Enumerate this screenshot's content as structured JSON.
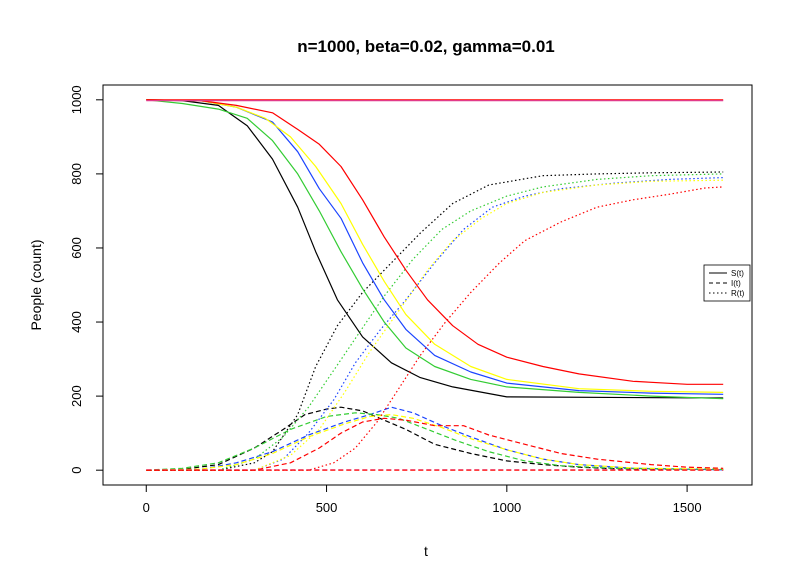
{
  "chart_data": {
    "type": "line",
    "title": "n=1000, beta=0.02, gamma=0.01",
    "xlabel": "t",
    "ylabel": "People (count)",
    "xlim": [
      -120,
      1680
    ],
    "ylim": [
      -40,
      1040
    ],
    "x_ticks": [
      0,
      500,
      1000,
      1500
    ],
    "x_tick_labels": [
      "0",
      "500",
      "1000",
      "1500"
    ],
    "y_ticks": [
      0,
      200,
      400,
      600,
      800,
      1000
    ],
    "y_tick_labels": [
      "0",
      "200",
      "400",
      "600",
      "800",
      "1000"
    ],
    "grid": false,
    "legend": {
      "position": "right",
      "entries": [
        {
          "label": "S(t)",
          "dash": "solid"
        },
        {
          "label": "I(t)",
          "dash": "dashed"
        },
        {
          "label": "R(t)",
          "dash": "dotted"
        }
      ]
    },
    "series": [
      {
        "color": "#000000",
        "dash": "solid",
        "x": [
          0,
          100,
          200,
          280,
          350,
          420,
          470,
          530,
          600,
          680,
          760,
          850,
          1000,
          1600
        ],
        "y": [
          1000,
          998,
          985,
          930,
          840,
          710,
          590,
          460,
          360,
          290,
          250,
          225,
          198,
          195
        ]
      },
      {
        "color": "#000000",
        "dash": "dashed",
        "x": [
          0,
          100,
          200,
          300,
          380,
          440,
          500,
          540,
          600,
          660,
          720,
          800,
          900,
          1000,
          1100,
          1200,
          1300,
          1450,
          1600
        ],
        "y": [
          0,
          2,
          15,
          60,
          110,
          150,
          165,
          170,
          160,
          135,
          110,
          70,
          45,
          25,
          15,
          8,
          4,
          2,
          1
        ]
      },
      {
        "color": "#000000",
        "dash": "dotted",
        "x": [
          0,
          200,
          300,
          350,
          420,
          470,
          530,
          600,
          680,
          760,
          850,
          950,
          1100,
          1250,
          1400,
          1600
        ],
        "y": [
          0,
          0,
          20,
          50,
          150,
          280,
          390,
          480,
          560,
          640,
          720,
          770,
          795,
          800,
          803,
          805
        ]
      },
      {
        "color": "#1b44ff",
        "dash": "solid",
        "x": [
          0,
          150,
          250,
          350,
          420,
          480,
          540,
          600,
          660,
          720,
          800,
          900,
          1000,
          1200,
          1400,
          1600
        ],
        "y": [
          1000,
          998,
          980,
          940,
          860,
          760,
          680,
          560,
          460,
          380,
          310,
          265,
          235,
          215,
          208,
          205
        ]
      },
      {
        "color": "#1b44ff",
        "dash": "dashed",
        "x": [
          0,
          150,
          250,
          350,
          450,
          550,
          620,
          680,
          740,
          820,
          900,
          1000,
          1100,
          1200,
          1350,
          1600
        ],
        "y": [
          0,
          2,
          20,
          50,
          95,
          130,
          150,
          170,
          155,
          120,
          90,
          55,
          30,
          15,
          5,
          1
        ]
      },
      {
        "color": "#1b44ff",
        "dash": "dotted",
        "x": [
          0,
          300,
          380,
          450,
          520,
          580,
          650,
          720,
          800,
          880,
          960,
          1050,
          1150,
          1300,
          1450,
          1600
        ],
        "y": [
          0,
          0,
          30,
          100,
          190,
          290,
          380,
          460,
          560,
          650,
          710,
          740,
          760,
          775,
          785,
          790
        ]
      },
      {
        "color": "#33cc33",
        "dash": "solid",
        "x": [
          0,
          100,
          200,
          280,
          350,
          420,
          480,
          540,
          600,
          660,
          720,
          800,
          900,
          1000,
          1200,
          1400,
          1600
        ],
        "y": [
          1000,
          990,
          975,
          950,
          890,
          800,
          700,
          590,
          490,
          400,
          330,
          280,
          245,
          225,
          210,
          200,
          193
        ]
      },
      {
        "color": "#33cc33",
        "dash": "dashed",
        "x": [
          0,
          100,
          200,
          300,
          400,
          500,
          580,
          640,
          700,
          780,
          860,
          950,
          1050,
          1150,
          1300,
          1600
        ],
        "y": [
          0,
          5,
          20,
          60,
          110,
          145,
          155,
          150,
          140,
          110,
          80,
          50,
          25,
          12,
          5,
          2
        ]
      },
      {
        "color": "#33cc33",
        "dash": "dotted",
        "x": [
          0,
          200,
          300,
          380,
          450,
          520,
          590,
          660,
          740,
          820,
          900,
          1000,
          1100,
          1250,
          1400,
          1600
        ],
        "y": [
          0,
          0,
          30,
          90,
          170,
          270,
          370,
          470,
          570,
          650,
          700,
          740,
          765,
          785,
          795,
          800
        ]
      },
      {
        "color": "#ffff00",
        "dash": "solid",
        "x": [
          0,
          150,
          250,
          330,
          400,
          470,
          540,
          600,
          660,
          720,
          800,
          900,
          1000,
          1200,
          1400,
          1600
        ],
        "y": [
          1000,
          998,
          980,
          950,
          900,
          820,
          720,
          610,
          510,
          420,
          340,
          280,
          245,
          220,
          213,
          210
        ]
      },
      {
        "color": "#ffff00",
        "dash": "dashed",
        "x": [
          0,
          150,
          250,
          350,
          450,
          550,
          620,
          680,
          740,
          820,
          900,
          1000,
          1100,
          1200,
          1350,
          1600
        ],
        "y": [
          0,
          3,
          15,
          45,
          90,
          125,
          145,
          150,
          140,
          115,
          85,
          55,
          30,
          15,
          6,
          2
        ]
      },
      {
        "color": "#ffff00",
        "dash": "dotted",
        "x": [
          0,
          300,
          400,
          480,
          550,
          620,
          700,
          780,
          850,
          930,
          1000,
          1100,
          1250,
          1400,
          1600
        ],
        "y": [
          0,
          0,
          40,
          110,
          210,
          320,
          430,
          540,
          620,
          680,
          720,
          750,
          770,
          780,
          783
        ]
      },
      {
        "color": "#ff0000",
        "dash": "solid",
        "x": [
          0,
          150,
          250,
          350,
          420,
          480,
          540,
          600,
          660,
          720,
          780,
          850,
          920,
          1000,
          1100,
          1200,
          1350,
          1500,
          1600
        ],
        "y": [
          1000,
          998,
          985,
          965,
          920,
          880,
          820,
          730,
          630,
          540,
          460,
          390,
          340,
          305,
          280,
          260,
          240,
          232,
          232
        ]
      },
      {
        "color": "#ff0000",
        "dash": "dashed",
        "x": [
          0,
          300,
          400,
          480,
          540,
          600,
          660,
          720,
          800,
          880,
          950,
          1050,
          1150,
          1250,
          1400,
          1500,
          1600
        ],
        "y": [
          0,
          0,
          20,
          60,
          100,
          130,
          140,
          135,
          120,
          120,
          95,
          70,
          45,
          30,
          15,
          8,
          5
        ]
      },
      {
        "color": "#ff0000",
        "dash": "dotted",
        "x": [
          0,
          450,
          520,
          580,
          640,
          700,
          760,
          830,
          900,
          980,
          1050,
          1150,
          1250,
          1350,
          1450,
          1550,
          1600
        ],
        "y": [
          0,
          0,
          20,
          60,
          130,
          220,
          310,
          400,
          480,
          560,
          620,
          670,
          710,
          730,
          745,
          762,
          765
        ]
      },
      {
        "color": "#ff0000",
        "dash": "solid",
        "x": [
          0,
          1600
        ],
        "y": [
          1000,
          1000
        ]
      },
      {
        "color": "#e23b8a",
        "dash": "solid",
        "x": [
          0,
          1600
        ],
        "y": [
          998,
          998
        ]
      },
      {
        "color": "#e23b8a",
        "dash": "dashed",
        "x": [
          0,
          1600
        ],
        "y": [
          1,
          1
        ]
      },
      {
        "color": "#ff0000",
        "dash": "dashed",
        "x": [
          0,
          1600
        ],
        "y": [
          0,
          0
        ]
      }
    ]
  }
}
